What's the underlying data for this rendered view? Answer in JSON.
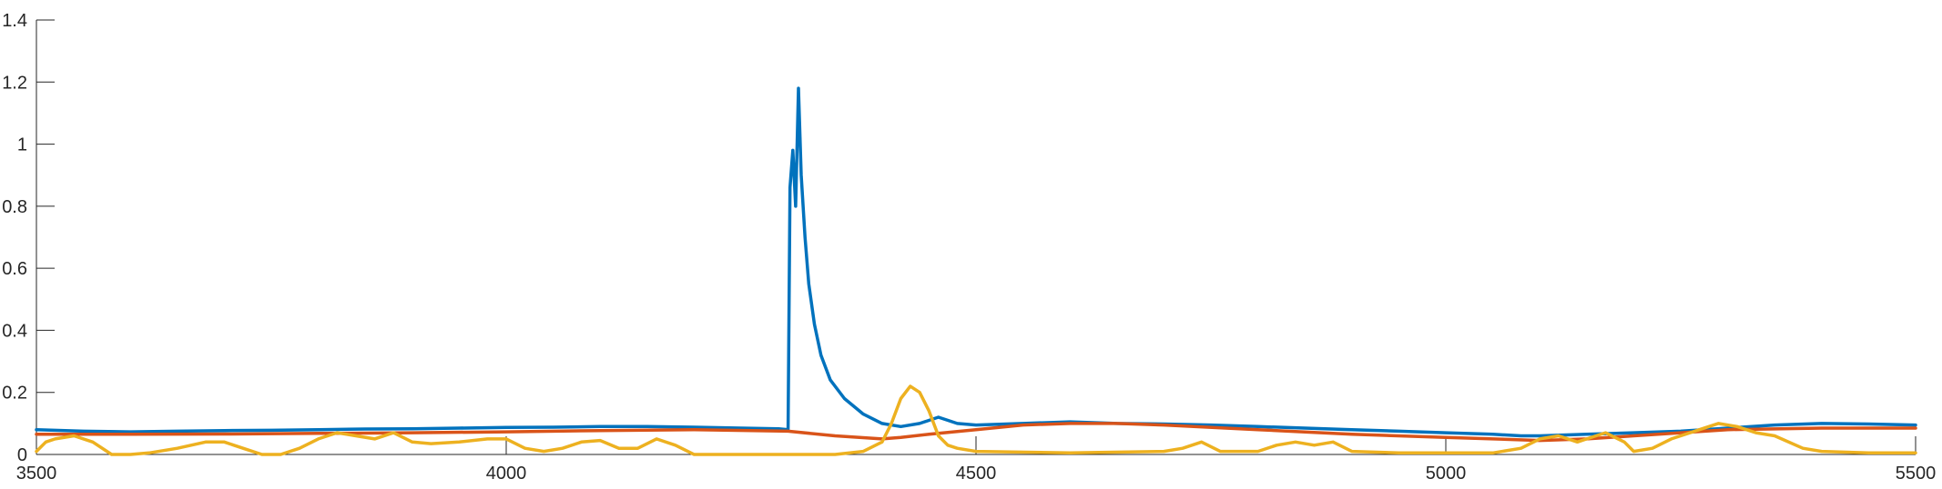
{
  "chart_data": {
    "type": "line",
    "title": "",
    "xlabel": "",
    "ylabel": "",
    "xlim": [
      3500,
      5500
    ],
    "ylim": [
      0,
      1.4
    ],
    "grid": false,
    "legend": "none",
    "x_ticks": [
      3500,
      4000,
      4500,
      5000,
      5500
    ],
    "x_tick_labels": [
      "3500",
      "4000",
      "4500",
      "5000",
      "5500"
    ],
    "y_ticks": [
      0,
      0.2,
      0.4,
      0.6,
      0.8,
      1.0,
      1.2,
      1.4
    ],
    "y_tick_labels": [
      "0",
      "0.2",
      "0.4",
      "0.6",
      "0.8",
      "1",
      "1.2",
      "1.4"
    ],
    "series": [
      {
        "color": "#0072BD",
        "x": [
          3500,
          3550,
          3600,
          3650,
          3700,
          3750,
          3800,
          3850,
          3900,
          3950,
          4000,
          4050,
          4100,
          4150,
          4200,
          4250,
          4290,
          4300,
          4302,
          4305,
          4308,
          4311,
          4314,
          4318,
          4322,
          4328,
          4335,
          4345,
          4360,
          4380,
          4400,
          4420,
          4440,
          4460,
          4480,
          4500,
          4550,
          4600,
          4650,
          4700,
          4750,
          4800,
          4850,
          4900,
          4950,
          5000,
          5050,
          5080,
          5100,
          5150,
          5200,
          5250,
          5300,
          5350,
          5400,
          5450,
          5500
        ],
        "y": [
          0.08,
          0.075,
          0.073,
          0.075,
          0.077,
          0.078,
          0.08,
          0.082,
          0.083,
          0.085,
          0.087,
          0.088,
          0.09,
          0.09,
          0.088,
          0.085,
          0.083,
          0.08,
          0.86,
          0.98,
          0.8,
          1.18,
          0.9,
          0.7,
          0.55,
          0.42,
          0.32,
          0.24,
          0.18,
          0.13,
          0.1,
          0.09,
          0.1,
          0.12,
          0.1,
          0.095,
          0.1,
          0.105,
          0.1,
          0.098,
          0.095,
          0.09,
          0.085,
          0.08,
          0.075,
          0.07,
          0.065,
          0.06,
          0.06,
          0.065,
          0.07,
          0.075,
          0.085,
          0.095,
          0.1,
          0.098,
          0.095
        ]
      },
      {
        "color": "#D95319",
        "x": [
          3500,
          3600,
          3700,
          3800,
          3900,
          4000,
          4100,
          4200,
          4300,
          4350,
          4400,
          4420,
          4450,
          4500,
          4550,
          4600,
          4650,
          4700,
          4800,
          4900,
          5000,
          5100,
          5150,
          5200,
          5300,
          5400,
          5500
        ],
        "y": [
          0.065,
          0.065,
          0.066,
          0.068,
          0.07,
          0.073,
          0.077,
          0.08,
          0.075,
          0.06,
          0.05,
          0.055,
          0.065,
          0.08,
          0.095,
          0.1,
          0.1,
          0.095,
          0.08,
          0.065,
          0.055,
          0.045,
          0.05,
          0.06,
          0.08,
          0.085,
          0.085
        ]
      },
      {
        "color": "#EDB120",
        "x": [
          3500,
          3510,
          3520,
          3540,
          3560,
          3580,
          3600,
          3620,
          3650,
          3680,
          3700,
          3720,
          3740,
          3760,
          3780,
          3800,
          3820,
          3840,
          3860,
          3880,
          3900,
          3920,
          3950,
          3980,
          4000,
          4020,
          4040,
          4060,
          4080,
          4100,
          4120,
          4140,
          4160,
          4180,
          4200,
          4250,
          4300,
          4350,
          4380,
          4400,
          4410,
          4420,
          4430,
          4440,
          4450,
          4460,
          4470,
          4480,
          4500,
          4600,
          4700,
          4720,
          4740,
          4760,
          4800,
          4820,
          4840,
          4860,
          4880,
          4900,
          4950,
          5000,
          5050,
          5080,
          5100,
          5120,
          5140,
          5150,
          5170,
          5190,
          5200,
          5220,
          5240,
          5250,
          5270,
          5290,
          5310,
          5330,
          5350,
          5380,
          5400,
          5450,
          5500
        ],
        "y": [
          0.01,
          0.04,
          0.05,
          0.06,
          0.04,
          0.0,
          0.0,
          0.005,
          0.02,
          0.04,
          0.04,
          0.02,
          0.0,
          0.0,
          0.02,
          0.05,
          0.07,
          0.06,
          0.05,
          0.07,
          0.04,
          0.035,
          0.04,
          0.05,
          0.05,
          0.02,
          0.01,
          0.02,
          0.04,
          0.045,
          0.02,
          0.02,
          0.05,
          0.03,
          0.0,
          0.0,
          0.0,
          0.0,
          0.01,
          0.04,
          0.1,
          0.18,
          0.22,
          0.2,
          0.14,
          0.06,
          0.03,
          0.02,
          0.01,
          0.005,
          0.01,
          0.02,
          0.04,
          0.01,
          0.01,
          0.03,
          0.04,
          0.03,
          0.04,
          0.01,
          0.005,
          0.005,
          0.005,
          0.02,
          0.05,
          0.06,
          0.04,
          0.05,
          0.07,
          0.04,
          0.01,
          0.02,
          0.05,
          0.06,
          0.08,
          0.1,
          0.09,
          0.07,
          0.06,
          0.02,
          0.01,
          0.005,
          0.005
        ]
      }
    ]
  }
}
